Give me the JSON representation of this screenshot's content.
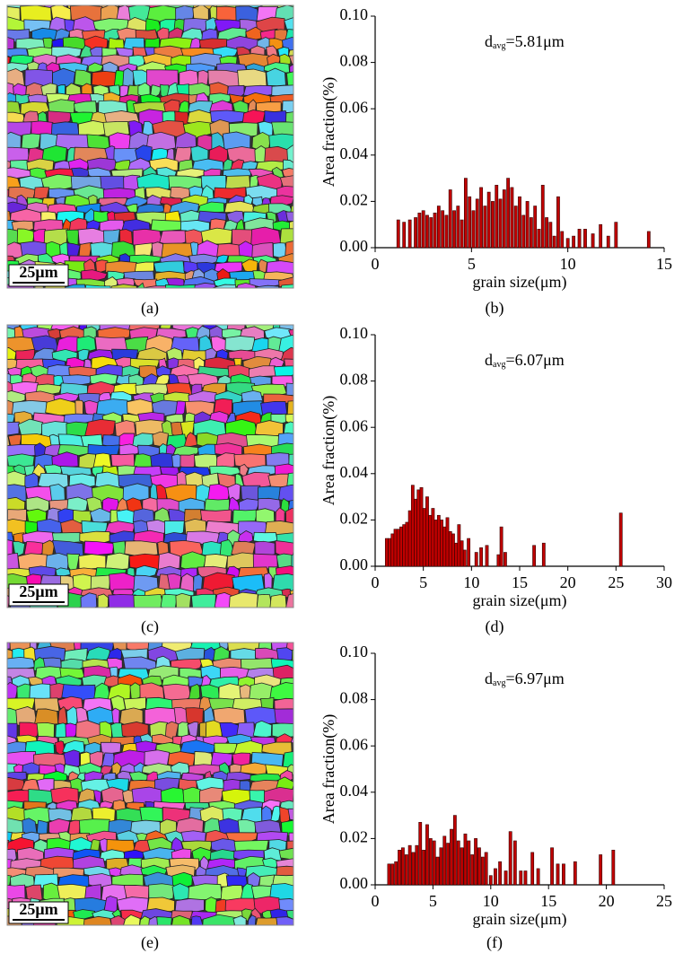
{
  "images": [
    {
      "panel_label": "(a)",
      "scale_label": "25μm"
    },
    {
      "panel_label": "(c)",
      "scale_label": "25μm"
    },
    {
      "panel_label": "(e)",
      "scale_label": "25μm"
    }
  ],
  "chart_data": [
    {
      "type": "bar",
      "panel_label": "(b)",
      "xlabel": "grain size(μm)",
      "ylabel": "Area fraction(%)",
      "annotation": {
        "base": "d",
        "sub": "avg",
        "rest": "=5.81μm"
      },
      "color": "#c00000",
      "xlim": [
        0,
        15
      ],
      "xticks": [
        0,
        5,
        10,
        15
      ],
      "ylim": [
        0,
        0.1
      ],
      "yticks": [
        {
          "value": 0,
          "label": "0.00"
        },
        {
          "value": 0.02,
          "label": "0.02"
        },
        {
          "value": 0.04,
          "label": "0.04"
        },
        {
          "value": 0.06,
          "label": "0.06"
        },
        {
          "value": 0.08,
          "label": "0.08"
        },
        {
          "value": 0.1,
          "label": "0.10"
        }
      ],
      "x": [
        1.2,
        1.5,
        1.8,
        2.1,
        2.3,
        2.5,
        2.7,
        2.9,
        3.1,
        3.3,
        3.5,
        3.7,
        3.9,
        4.1,
        4.3,
        4.5,
        4.7,
        4.9,
        5.1,
        5.3,
        5.5,
        5.7,
        5.9,
        6.1,
        6.3,
        6.5,
        6.7,
        6.9,
        7.1,
        7.3,
        7.5,
        7.7,
        7.9,
        8.1,
        8.3,
        8.5,
        8.7,
        8.9,
        9.1,
        9.3,
        9.5,
        9.7,
        10.0,
        10.3,
        10.6,
        10.9,
        11.3,
        11.7,
        12.1,
        12.5,
        14.2
      ],
      "values": [
        0.012,
        0.011,
        0.012,
        0.013,
        0.015,
        0.016,
        0.014,
        0.013,
        0.015,
        0.018,
        0.016,
        0.014,
        0.025,
        0.016,
        0.018,
        0.012,
        0.03,
        0.022,
        0.016,
        0.021,
        0.026,
        0.018,
        0.024,
        0.02,
        0.027,
        0.021,
        0.025,
        0.03,
        0.026,
        0.018,
        0.022,
        0.014,
        0.02,
        0.013,
        0.018,
        0.008,
        0.027,
        0.013,
        0.011,
        0.005,
        0.022,
        0.007,
        0.004,
        0.005,
        0.008,
        0.008,
        0.006,
        0.01,
        0.005,
        0.011,
        0.007
      ]
    },
    {
      "type": "bar",
      "panel_label": "(d)",
      "xlabel": "grain size(μm)",
      "ylabel": "Area fraction(%)",
      "annotation": {
        "base": "d",
        "sub": "avg",
        "rest": "=6.07μm"
      },
      "color": "#c00000",
      "xlim": [
        0,
        30
      ],
      "xticks": [
        0,
        5,
        10,
        15,
        20,
        25,
        30
      ],
      "ylim": [
        0,
        0.1
      ],
      "yticks": [
        {
          "value": 0,
          "label": "0.00"
        },
        {
          "value": 0.02,
          "label": "0.02"
        },
        {
          "value": 0.04,
          "label": "0.04"
        },
        {
          "value": 0.06,
          "label": "0.06"
        },
        {
          "value": 0.08,
          "label": "0.08"
        },
        {
          "value": 0.1,
          "label": "0.10"
        }
      ],
      "x": [
        1.2,
        1.5,
        1.8,
        2.1,
        2.4,
        2.7,
        3.0,
        3.3,
        3.6,
        3.9,
        4.2,
        4.5,
        4.8,
        5.1,
        5.4,
        5.7,
        6.0,
        6.3,
        6.6,
        6.9,
        7.2,
        7.5,
        7.8,
        8.1,
        8.4,
        8.7,
        9.0,
        9.3,
        9.7,
        10.5,
        11.0,
        11.6,
        12.8,
        13.1,
        13.5,
        16.5,
        17.5,
        25.5
      ],
      "values": [
        0.012,
        0.012,
        0.014,
        0.016,
        0.016,
        0.017,
        0.018,
        0.019,
        0.024,
        0.035,
        0.029,
        0.033,
        0.034,
        0.025,
        0.03,
        0.022,
        0.025,
        0.02,
        0.022,
        0.02,
        0.017,
        0.021,
        0.015,
        0.014,
        0.01,
        0.018,
        0.011,
        0.007,
        0.012,
        0.006,
        0.008,
        0.009,
        0.005,
        0.017,
        0.006,
        0.009,
        0.01,
        0.023
      ]
    },
    {
      "type": "bar",
      "panel_label": "(f)",
      "xlabel": "grain size(μm)",
      "ylabel": "Area fraction(%)",
      "annotation": {
        "base": "d",
        "sub": "avg",
        "rest": "=6.97μm"
      },
      "color": "#c00000",
      "xlim": [
        0,
        25
      ],
      "xticks": [
        0,
        5,
        10,
        15,
        20,
        25
      ],
      "ylim": [
        0,
        0.1
      ],
      "yticks": [
        {
          "value": 0,
          "label": "0.00"
        },
        {
          "value": 0.02,
          "label": "0.02"
        },
        {
          "value": 0.04,
          "label": "0.04"
        },
        {
          "value": 0.06,
          "label": "0.06"
        },
        {
          "value": 0.08,
          "label": "0.08"
        },
        {
          "value": 0.1,
          "label": "0.10"
        }
      ],
      "x": [
        1.2,
        1.5,
        1.8,
        2.1,
        2.4,
        2.7,
        3.0,
        3.3,
        3.6,
        3.9,
        4.2,
        4.5,
        4.8,
        5.1,
        5.4,
        5.7,
        6.0,
        6.3,
        6.6,
        6.9,
        7.2,
        7.5,
        7.8,
        8.1,
        8.4,
        8.7,
        9.0,
        9.3,
        9.6,
        10.0,
        10.4,
        10.8,
        11.3,
        11.7,
        12.1,
        12.6,
        13.0,
        13.6,
        14.1,
        15.3,
        15.8,
        16.3,
        17.3,
        19.5,
        20.6
      ],
      "values": [
        0.009,
        0.009,
        0.01,
        0.015,
        0.016,
        0.013,
        0.017,
        0.014,
        0.017,
        0.027,
        0.015,
        0.026,
        0.02,
        0.019,
        0.012,
        0.016,
        0.021,
        0.018,
        0.024,
        0.03,
        0.019,
        0.016,
        0.022,
        0.019,
        0.013,
        0.02,
        0.016,
        0.012,
        0.014,
        0.004,
        0.007,
        0.01,
        0.006,
        0.023,
        0.019,
        0.006,
        0.006,
        0.014,
        0.007,
        0.016,
        0.009,
        0.009,
        0.01,
        0.013,
        0.015
      ]
    }
  ]
}
